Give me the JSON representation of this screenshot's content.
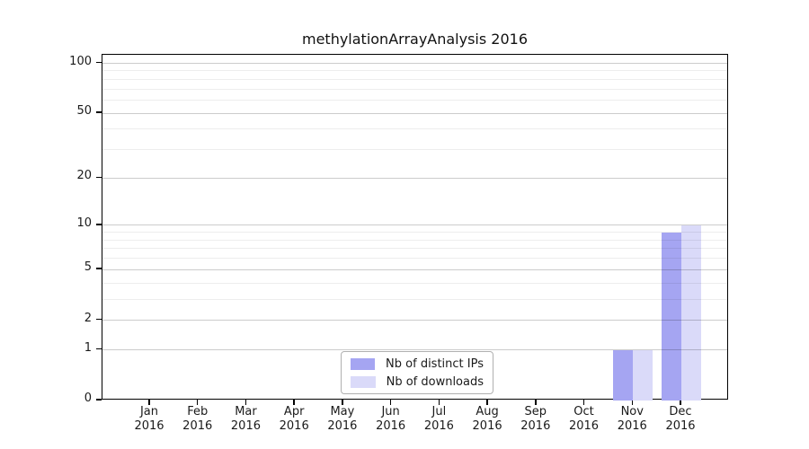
{
  "chart_data": {
    "type": "bar",
    "title": "methylationArrayAnalysis 2016",
    "categories": [
      "Jan",
      "Feb",
      "Mar",
      "Apr",
      "May",
      "Jun",
      "Jul",
      "Aug",
      "Sep",
      "Oct",
      "Nov",
      "Dec"
    ],
    "category_year": "2016",
    "series": [
      {
        "name": "Nb of distinct IPs",
        "color": "#a5a5f2",
        "values": [
          0,
          0,
          0,
          0,
          0,
          0,
          0,
          0,
          0,
          0,
          1,
          9
        ]
      },
      {
        "name": "Nb of downloads",
        "color": "#dadaf9",
        "values": [
          0,
          0,
          0,
          0,
          0,
          0,
          0,
          0,
          0,
          0,
          1,
          10
        ]
      }
    ],
    "y_axis": {
      "scale": "log1p",
      "tick_values": [
        0,
        1,
        2,
        5,
        10,
        20,
        50,
        100
      ],
      "tick_labels": [
        "0",
        "1",
        "2",
        "5",
        "10",
        "20",
        "50",
        "100"
      ],
      "minor_tick_values": [
        3,
        4,
        6,
        7,
        8,
        9,
        30,
        40,
        60,
        70,
        80,
        90
      ],
      "top_value": 113
    },
    "x_axis": {
      "tick_label_lines": 2
    },
    "grid": "horizontal",
    "legend": {
      "position": "bottom-center",
      "entries": [
        "Nb of distinct IPs",
        "Nb of downloads"
      ]
    },
    "colors": {
      "bar_distinct_ips": "#a5a5f2",
      "bar_downloads": "#dadaf9",
      "grid_major": "rgba(0,0,0,0.20)",
      "grid_minor": "rgba(0,0,0,0.07)",
      "axis": "#000000",
      "text": "#1a1a1a",
      "background": "#ffffff"
    }
  }
}
